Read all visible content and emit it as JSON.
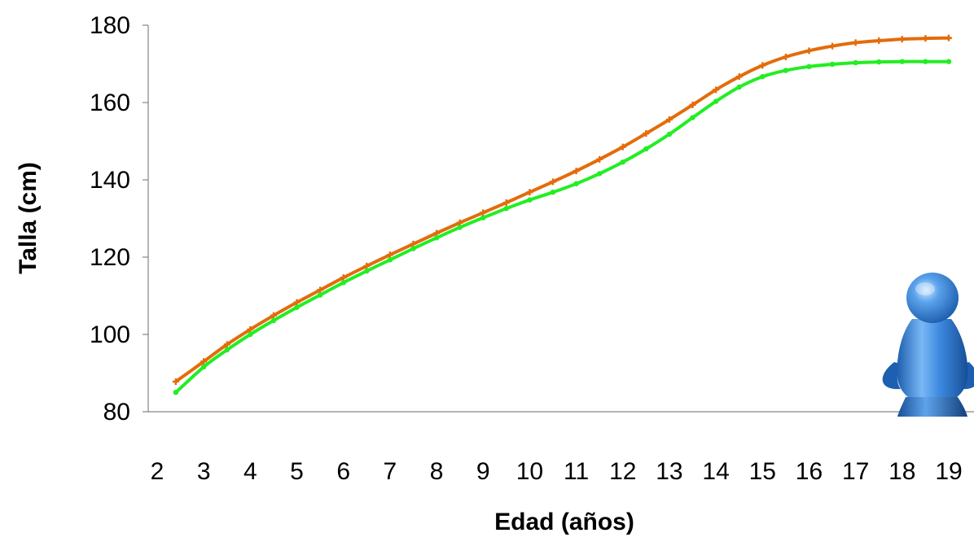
{
  "chart_data": {
    "type": "line",
    "title": "",
    "xlabel": "Edad (años)",
    "ylabel": "Talla (cm)",
    "x_ticks": [
      "2",
      "3",
      "4",
      "5",
      "6",
      "7",
      "8",
      "9",
      "10",
      "11",
      "12",
      "13",
      "14",
      "15",
      "16",
      "17",
      "18",
      "19"
    ],
    "y_ticks": [
      "80",
      "100",
      "120",
      "140",
      "160",
      "180"
    ],
    "xlim": [
      2,
      19
    ],
    "ylim": [
      80,
      180
    ],
    "grid": false,
    "legend": "none",
    "series": [
      {
        "color": "#E36C0A",
        "marker": "plus",
        "x": [
          2.4,
          3,
          3.5,
          4,
          4.5,
          5,
          5.5,
          6,
          6.5,
          7,
          7.5,
          8,
          8.5,
          9,
          9.5,
          10,
          10.5,
          11,
          11.5,
          12,
          12.5,
          13,
          13.5,
          14,
          14.5,
          15,
          15.5,
          16,
          16.5,
          17,
          17.5,
          18,
          18.5,
          19
        ],
        "values": [
          87.8,
          93.0,
          97.4,
          101.3,
          104.9,
          108.3,
          111.5,
          114.7,
          117.7,
          120.6,
          123.4,
          126.2,
          128.9,
          131.5,
          134.1,
          136.8,
          139.5,
          142.3,
          145.3,
          148.5,
          152.0,
          155.6,
          159.4,
          163.3,
          166.7,
          169.6,
          171.8,
          173.4,
          174.6,
          175.5,
          176.0,
          176.4,
          176.6,
          176.7
        ]
      },
      {
        "color": "#22EE22",
        "marker": "dot",
        "x": [
          2.4,
          3,
          3.5,
          4,
          4.5,
          5,
          5.5,
          6,
          6.5,
          7,
          7.5,
          8,
          8.5,
          9,
          9.5,
          10,
          10.5,
          11,
          11.5,
          12,
          12.5,
          13,
          13.5,
          14,
          14.5,
          15,
          15.5,
          16,
          16.5,
          17,
          17.5,
          18,
          18.5,
          19
        ],
        "values": [
          85.0,
          91.6,
          96.0,
          100.0,
          103.6,
          107.0,
          110.2,
          113.4,
          116.4,
          119.3,
          122.2,
          125.0,
          127.7,
          130.2,
          132.6,
          134.8,
          136.8,
          139.0,
          141.6,
          144.6,
          148.0,
          151.8,
          156.1,
          160.3,
          164.0,
          166.7,
          168.3,
          169.3,
          169.9,
          170.3,
          170.5,
          170.6,
          170.6,
          170.6
        ]
      }
    ]
  },
  "icon": {
    "name": "user-figure-icon",
    "color": "#2F7DD1"
  }
}
